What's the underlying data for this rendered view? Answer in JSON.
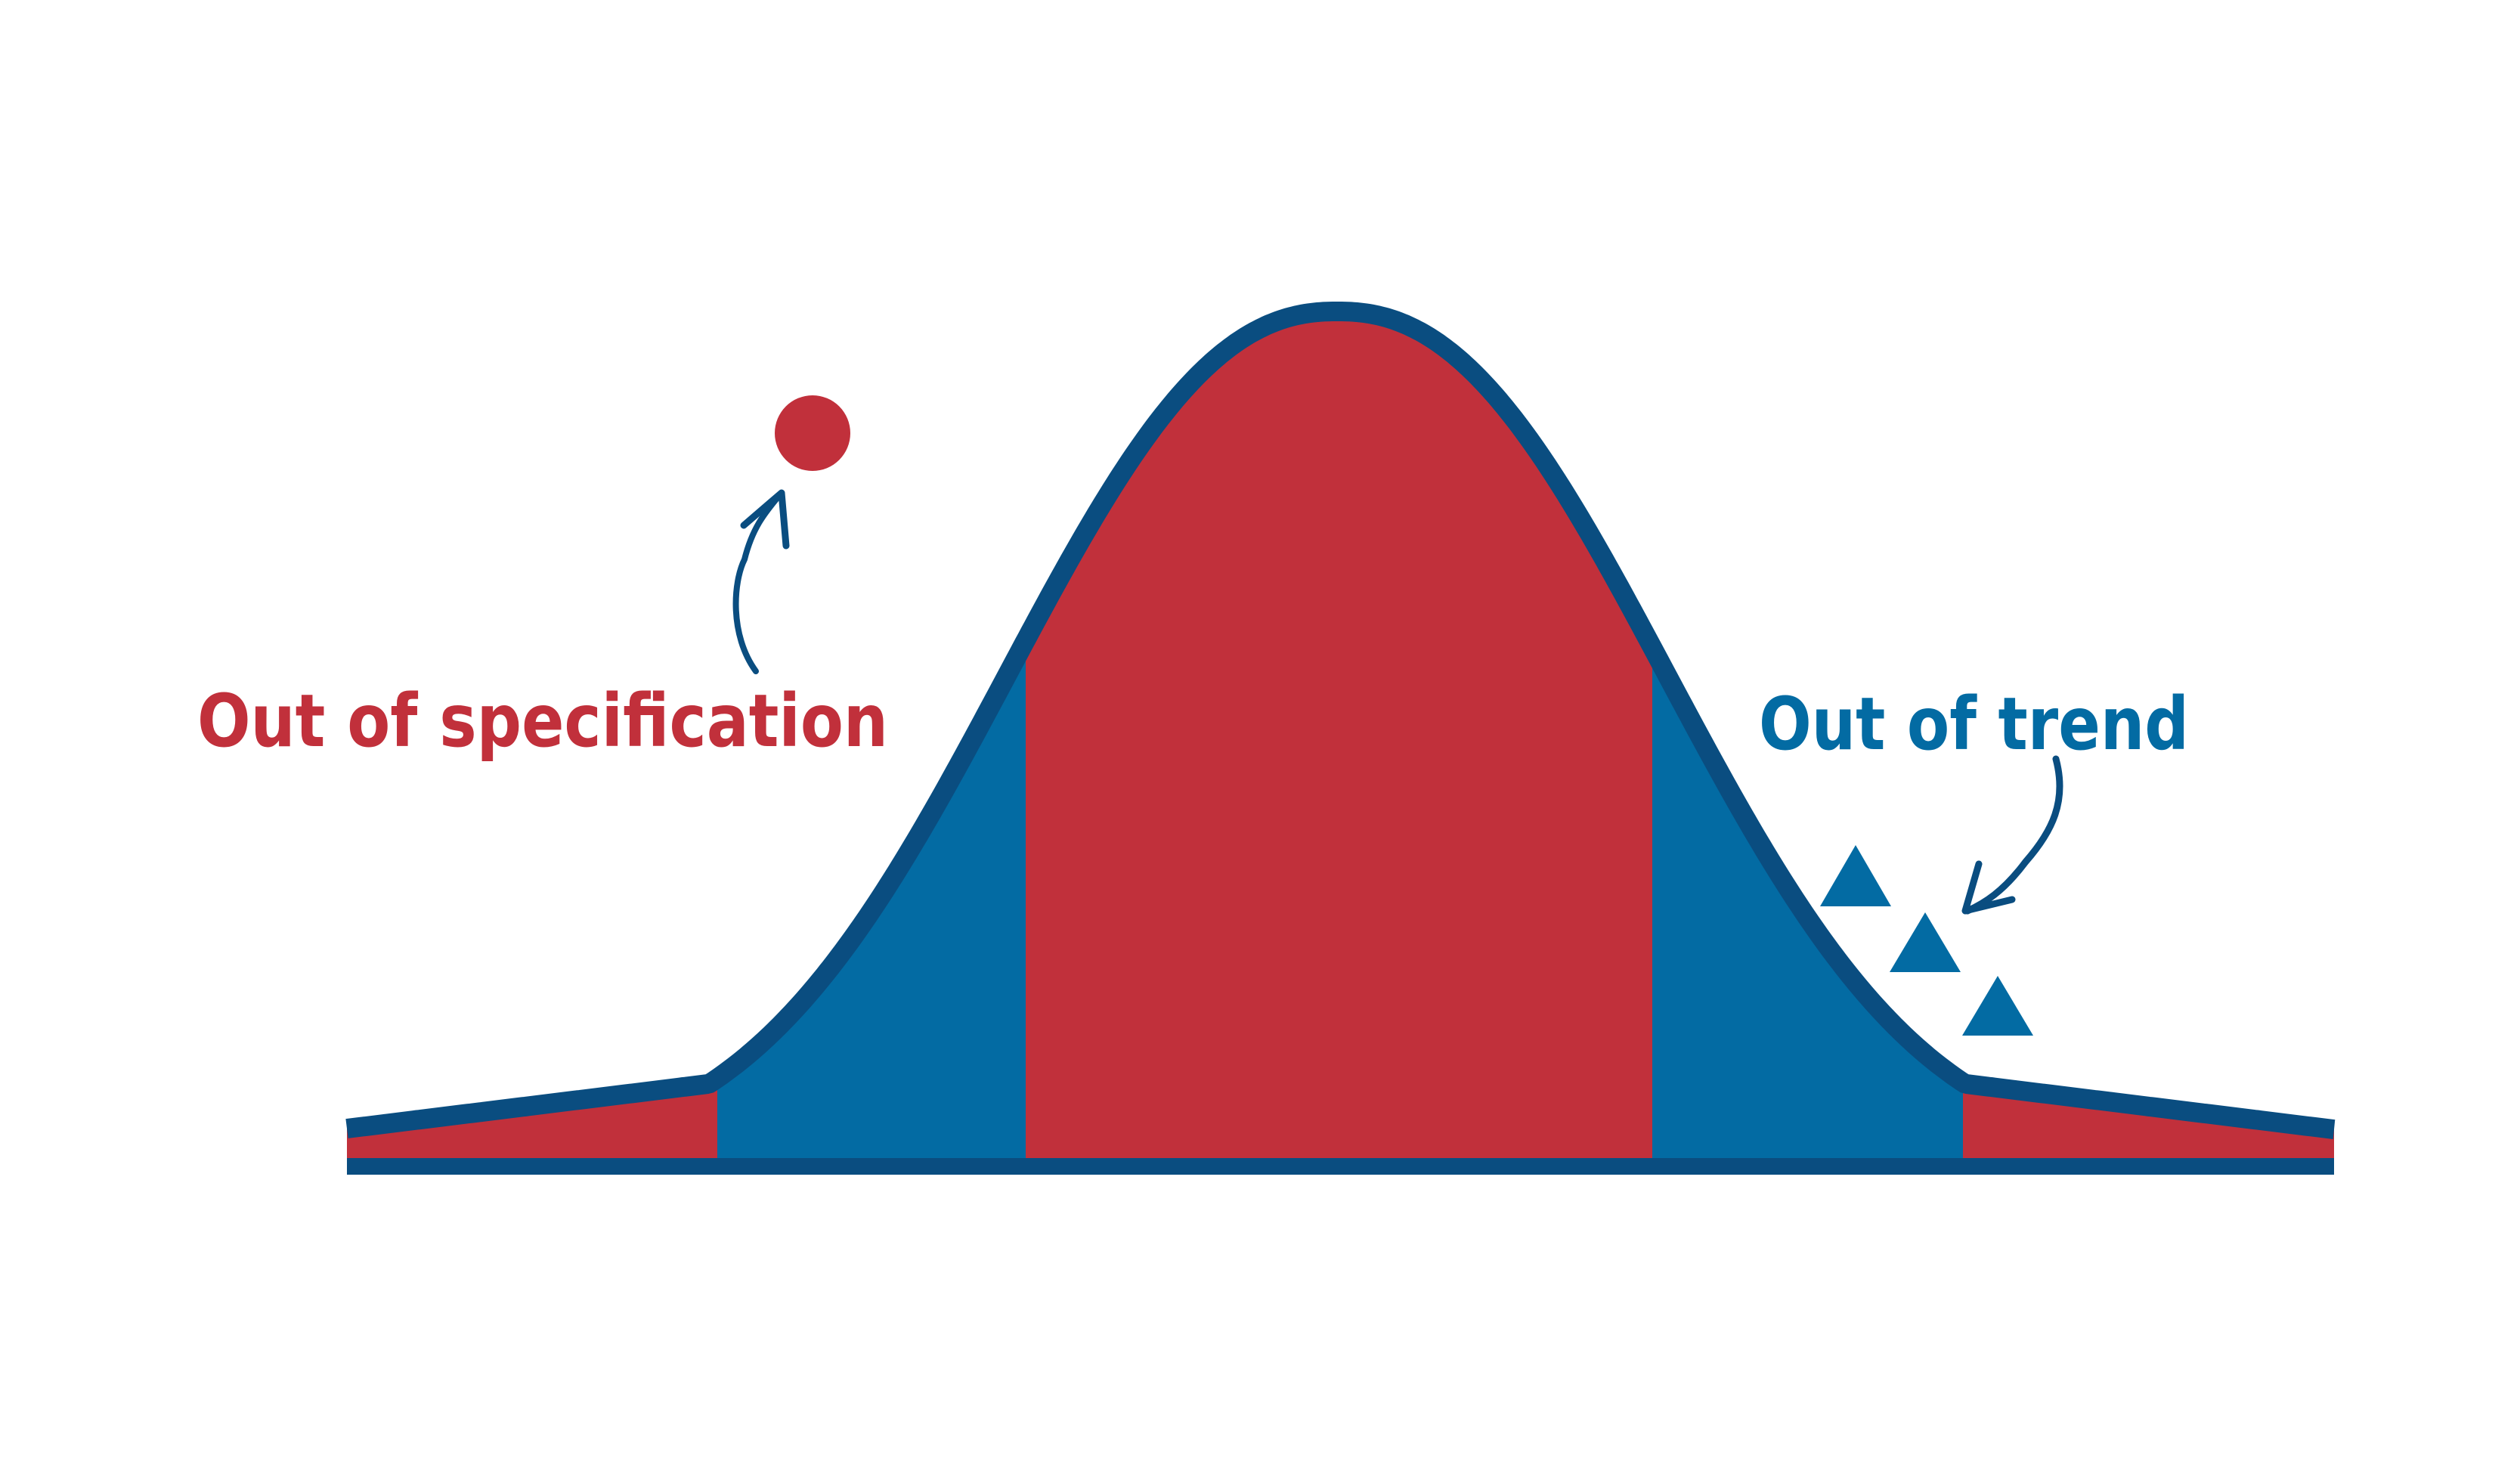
{
  "labels": {
    "out_of_specification": "Out of specification",
    "out_of_trend": "Out of trend"
  },
  "colors": {
    "red": "#c1303b",
    "blue": "#036ba3",
    "dark_blue": "#0a4d80",
    "background": "#ffffff"
  },
  "markers": {
    "out_of_specification_point": "circle",
    "out_of_trend_points": [
      "triangle",
      "triangle",
      "triangle"
    ]
  }
}
